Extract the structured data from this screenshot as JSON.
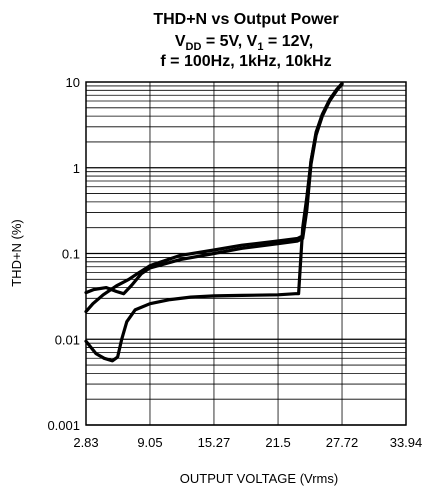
{
  "chart_data": {
    "type": "line",
    "title": {
      "line1": "THD+N vs Output Power",
      "line2_main": "V",
      "line2_sub1": "DD",
      "line2_mid": " = 5V, V",
      "line2_sub2": "1",
      "line2_end": " = 12V,",
      "line3": "f = 100Hz, 1kHz, 10kHz"
    },
    "xlabel": "OUTPUT VOLTAGE (Vrms)",
    "ylabel": "THD+N (%)",
    "x_ticks": [
      "2.83",
      "9.05",
      "15.27",
      "21.5",
      "27.72",
      "33.94"
    ],
    "y_ticks": [
      "10",
      "1",
      "0.1",
      "0.01",
      "0.001"
    ],
    "xlim": [
      2.83,
      33.94
    ],
    "ylim": [
      0.001,
      10
    ],
    "y_scale": "log",
    "grid": true,
    "series": [
      {
        "x": [
          2.83,
          3.5,
          4.5,
          5.8,
          7.0,
          7.8,
          9.05,
          12,
          15.27,
          18,
          21.5,
          23.4,
          23.9,
          24.3,
          24.7,
          25.2,
          25.8,
          26.5,
          27.2,
          27.72
        ],
        "y": [
          0.021,
          0.026,
          0.033,
          0.042,
          0.05,
          0.058,
          0.072,
          0.095,
          0.11,
          0.125,
          0.14,
          0.15,
          0.16,
          0.35,
          1.2,
          2.6,
          4.2,
          6.2,
          8.2,
          9.6
        ]
      },
      {
        "x": [
          2.83,
          3.6,
          4.8,
          5.8,
          6.5,
          7.3,
          8.2,
          9.05,
          12,
          15.27,
          18,
          21.5,
          23.4,
          23.9,
          24.3,
          24.7,
          25.2,
          25.8,
          26.5,
          27.2,
          27.72
        ],
        "y": [
          0.035,
          0.038,
          0.04,
          0.036,
          0.034,
          0.043,
          0.058,
          0.068,
          0.085,
          0.1,
          0.115,
          0.13,
          0.14,
          0.15,
          0.32,
          1.1,
          2.4,
          4.0,
          6.0,
          8.0,
          9.5
        ]
      },
      {
        "x": [
          2.83,
          3.8,
          4.6,
          5.4,
          5.9,
          6.3,
          6.8,
          7.6,
          9.05,
          11,
          13,
          15.27,
          18,
          21.5,
          23.2,
          23.5,
          23.9,
          24.3,
          24.7,
          25.2,
          25.8,
          26.5,
          27.2,
          27.72
        ],
        "y": [
          0.0095,
          0.0068,
          0.006,
          0.0056,
          0.0062,
          0.01,
          0.016,
          0.022,
          0.026,
          0.029,
          0.031,
          0.032,
          0.0325,
          0.033,
          0.034,
          0.034,
          0.2,
          0.45,
          1.2,
          2.5,
          4.1,
          6.0,
          8.0,
          9.4
        ]
      }
    ]
  }
}
